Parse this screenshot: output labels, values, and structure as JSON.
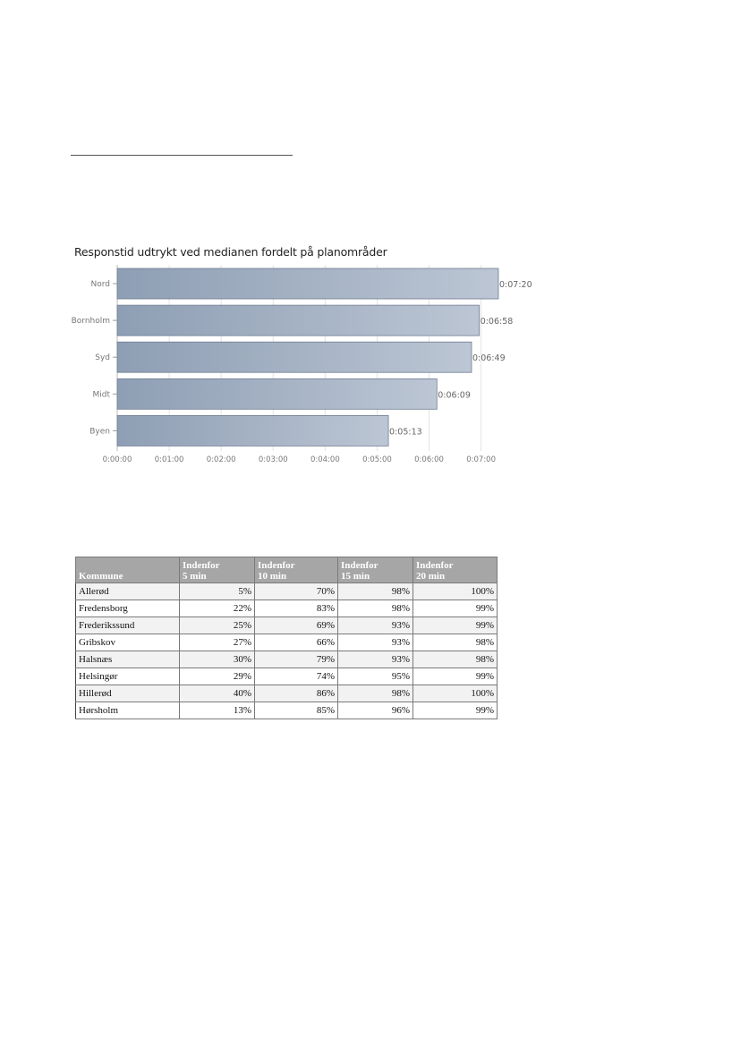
{
  "chart_data": {
    "type": "bar",
    "orientation": "horizontal",
    "title": "Responstid udtrykt ved medianen fordelt på planområder",
    "categories": [
      "Nord",
      "Bornholm",
      "Syd",
      "Midt",
      "Byen"
    ],
    "values_seconds": [
      440,
      418,
      409,
      369,
      313
    ],
    "value_labels": [
      "0:07:20",
      "0:06:58",
      "0:06:49",
      "0:06:09",
      "0:05:13"
    ],
    "x_ticks": [
      "0:00:00",
      "0:01:00",
      "0:02:00",
      "0:03:00",
      "0:04:00",
      "0:05:00",
      "0:06:00",
      "0:07:00"
    ],
    "xlim_seconds": [
      0,
      440
    ],
    "grid": true,
    "colors": {
      "bar_start": "#8e9eb4",
      "bar_end": "#bcc6d4",
      "bar_edge": "#6f7d91"
    }
  },
  "table": {
    "headers": [
      [
        "Kommune"
      ],
      [
        "Indenfor",
        "5 min"
      ],
      [
        "Indenfor",
        "10 min"
      ],
      [
        "Indenfor",
        "15 min"
      ],
      [
        "Indenfor",
        "20 min"
      ]
    ],
    "rows": [
      [
        "Allerød",
        "5%",
        "70%",
        "98%",
        "100%"
      ],
      [
        "Fredensborg",
        "22%",
        "83%",
        "98%",
        "99%"
      ],
      [
        "Frederikssund",
        "25%",
        "69%",
        "93%",
        "99%"
      ],
      [
        "Gribskov",
        "27%",
        "66%",
        "93%",
        "98%"
      ],
      [
        "Halsnæs",
        "30%",
        "79%",
        "93%",
        "98%"
      ],
      [
        "Helsingør",
        "29%",
        "74%",
        "95%",
        "99%"
      ],
      [
        "Hillerød",
        "40%",
        "86%",
        "98%",
        "100%"
      ],
      [
        "Hørsholm",
        "13%",
        "85%",
        "96%",
        "99%"
      ]
    ]
  }
}
